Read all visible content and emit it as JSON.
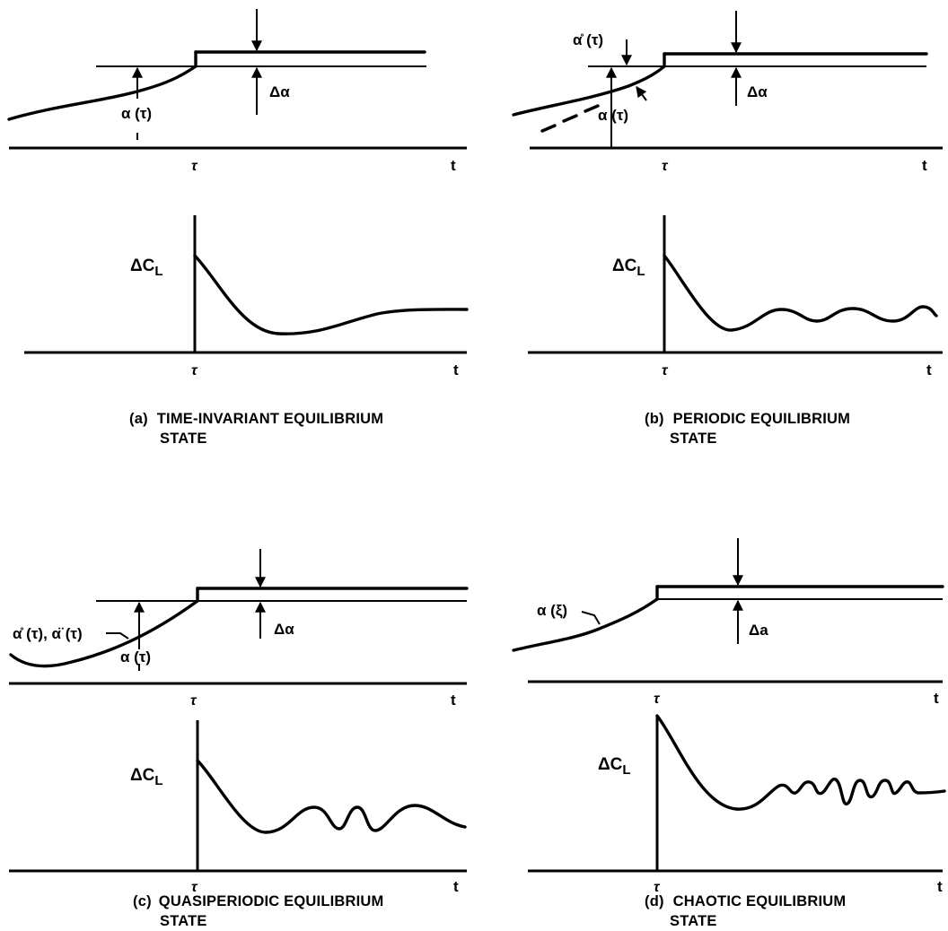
{
  "panels": [
    {
      "id": "a",
      "caption_letter": "(a)",
      "caption_line1": "TIME-INVARIANT EQUILIBRIUM",
      "caption_line2": "STATE",
      "top_x_tick": "τ",
      "top_t_label": "t",
      "bottom_x_tick": "τ",
      "bottom_t_label": "t",
      "delta_alpha": "Δα",
      "alpha_label": "α (τ)",
      "dcl": "ΔC",
      "dcl_sub": "L"
    },
    {
      "id": "b",
      "caption_letter": "(b)",
      "caption_line1": "PERIODIC EQUILIBRIUM",
      "caption_line2": "STATE",
      "top_x_tick": "τ",
      "top_t_label": "t",
      "bottom_x_tick": "τ",
      "bottom_t_label": "t",
      "delta_alpha": "Δα",
      "alpha_label": "α (τ)",
      "alpha_dot_label": "α̊ (τ)",
      "dcl": "ΔC",
      "dcl_sub": "L"
    },
    {
      "id": "c",
      "caption_letter": "(c)",
      "caption_line1": "QUASIPERIODIC EQUILIBRIUM",
      "caption_line2": "STATE",
      "top_x_tick": "τ",
      "top_t_label": "t",
      "bottom_x_tick": "τ",
      "bottom_t_label": "t",
      "delta_alpha": "Δα",
      "alpha_label": "α (τ)",
      "derivs_label": "α̊ (τ), α̈ (τ)",
      "dcl": "ΔC",
      "dcl_sub": "L"
    },
    {
      "id": "d",
      "caption_letter": "(d)",
      "caption_line1": "CHAOTIC EQUILIBRIUM",
      "caption_line2": "STATE",
      "top_x_tick": "τ",
      "top_t_label": "t",
      "bottom_x_tick": "τ",
      "bottom_t_label": "t",
      "delta_alpha": "Δa",
      "alpha_label": "α (ξ)",
      "dcl": "ΔC",
      "dcl_sub": "L"
    }
  ]
}
